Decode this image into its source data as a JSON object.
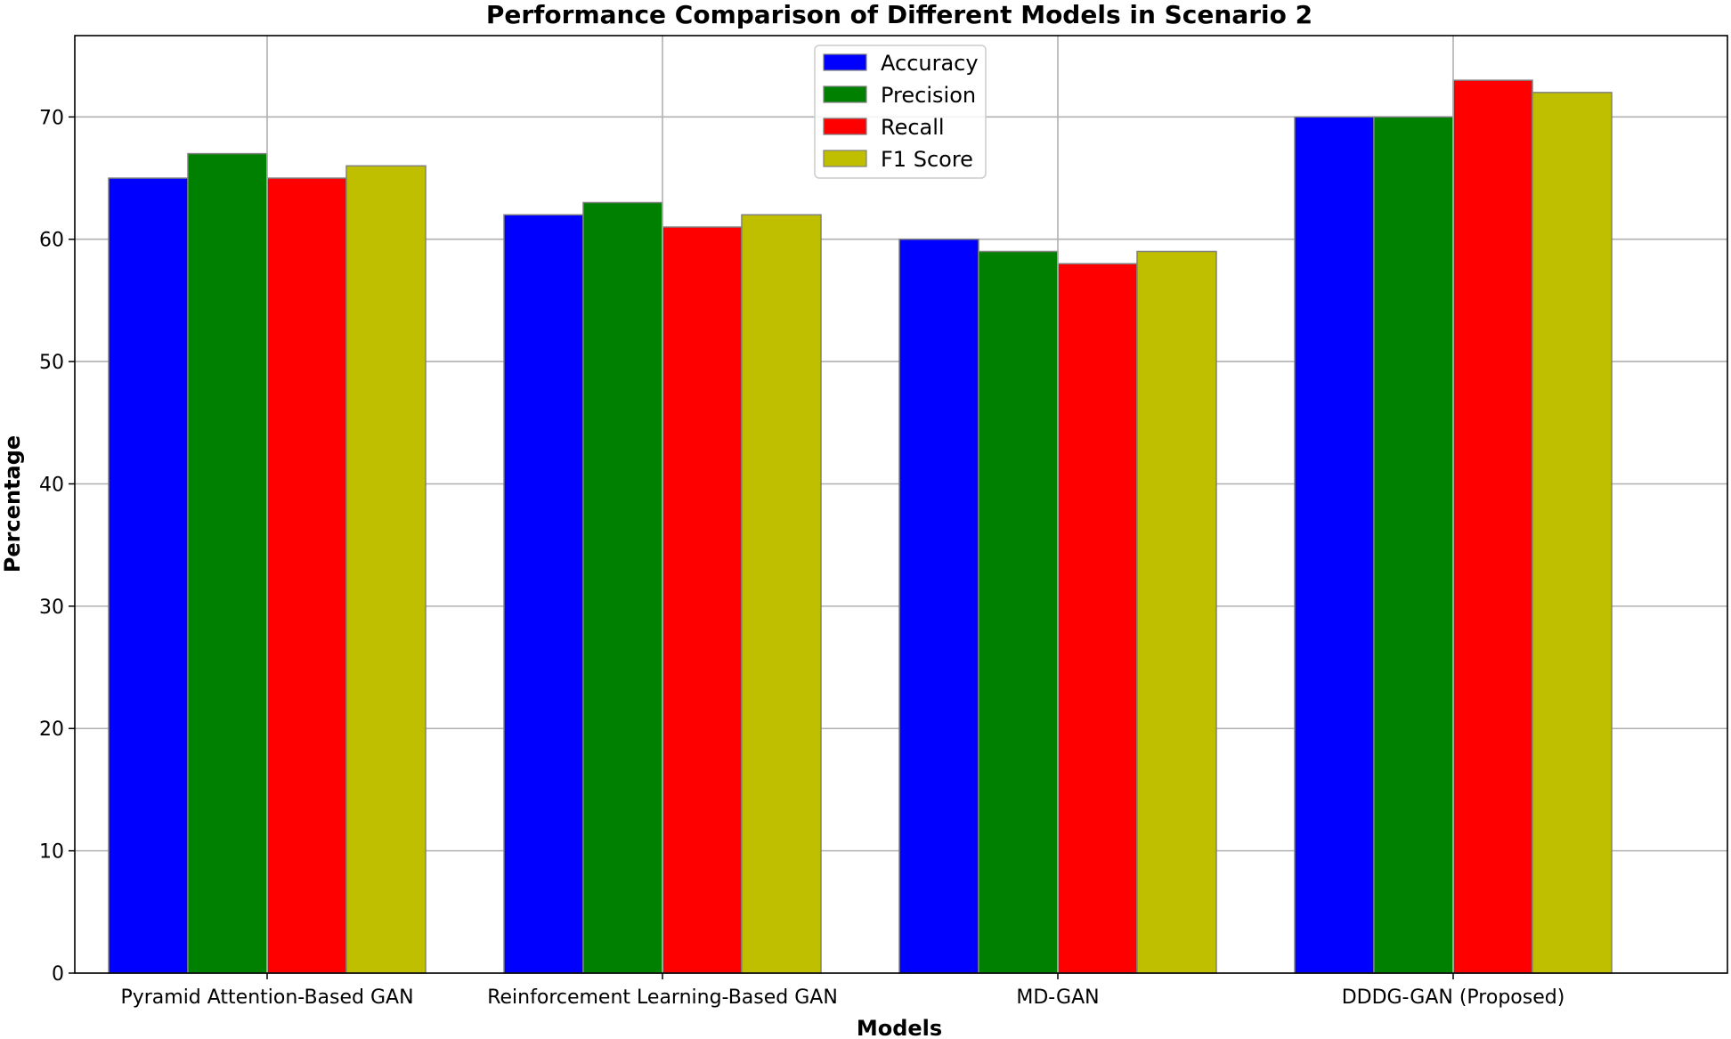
{
  "chart_data": {
    "type": "bar",
    "title": "Performance Comparison of Different Models in Scenario 2",
    "xlabel": "Models",
    "ylabel": "Percentage",
    "categories": [
      "Pyramid Attention-Based GAN",
      "Reinforcement Learning-Based GAN",
      "MD-GAN",
      "DDDG-GAN (Proposed)"
    ],
    "series": [
      {
        "name": "Accuracy",
        "color": "#0000ff",
        "values": [
          65,
          62,
          60,
          70
        ]
      },
      {
        "name": "Precision",
        "color": "#008000",
        "values": [
          67,
          63,
          59,
          70
        ]
      },
      {
        "name": "Recall",
        "color": "#ff0000",
        "values": [
          65,
          61,
          58,
          73
        ]
      },
      {
        "name": "F1 Score",
        "color": "#bfbf00",
        "values": [
          66,
          62,
          59,
          72
        ]
      }
    ],
    "ylim": [
      0,
      76.65
    ],
    "yticks": [
      "0",
      "10",
      "20",
      "30",
      "40",
      "50",
      "60",
      "70"
    ],
    "grid": true,
    "legend_position": "top-center",
    "bar_edge_color": "#808080"
  }
}
